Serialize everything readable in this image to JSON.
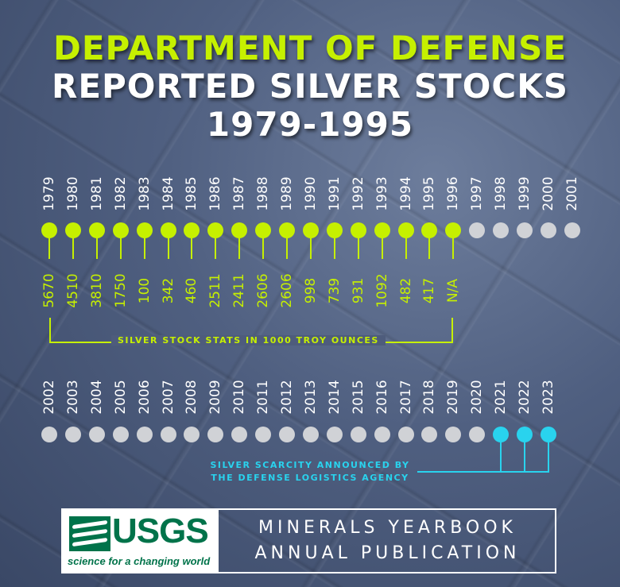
{
  "header": {
    "line1": "DEPARTMENT OF DEFENSE",
    "line2": "REPORTED SILVER STOCKS",
    "line3": "1979-1995"
  },
  "row1": {
    "years": [
      "1979",
      "1980",
      "1981",
      "1982",
      "1983",
      "1984",
      "1985",
      "1986",
      "1987",
      "1988",
      "1989",
      "1990",
      "1991",
      "1992",
      "1993",
      "1994",
      "1995",
      "1996",
      "1997",
      "1998",
      "1999",
      "2000",
      "2001"
    ],
    "values": [
      "5670",
      "4510",
      "3810",
      "1750",
      "100",
      "342",
      "460",
      "2511",
      "2411",
      "2606",
      "2606",
      "998",
      "739",
      "931",
      "1092",
      "482",
      "417",
      "N/A"
    ],
    "bracket_label": "SILVER STOCK STATS IN 1000 TROY OUNCES"
  },
  "row2": {
    "years": [
      "2002",
      "2003",
      "2004",
      "2005",
      "2006",
      "2007",
      "2008",
      "2009",
      "2010",
      "2011",
      "2012",
      "2013",
      "2014",
      "2015",
      "2016",
      "2017",
      "2018",
      "2019",
      "2020",
      "2021",
      "2022",
      "2023"
    ],
    "scarcity_label_line1": "SILVER SCARCITY ANNOUNCED BY",
    "scarcity_label_line2": "THE DEFENSE LOGISTICS AGENCY"
  },
  "colors": {
    "green": "#c6f000",
    "cyan": "#29d3ee",
    "grey": "#d0d2d6"
  },
  "footer": {
    "logo_text": "USGS",
    "logo_tagline": "science for a changing world",
    "pub_line1": "MINERALS YEARBOOK",
    "pub_line2": "ANNUAL PUBLICATION"
  }
}
